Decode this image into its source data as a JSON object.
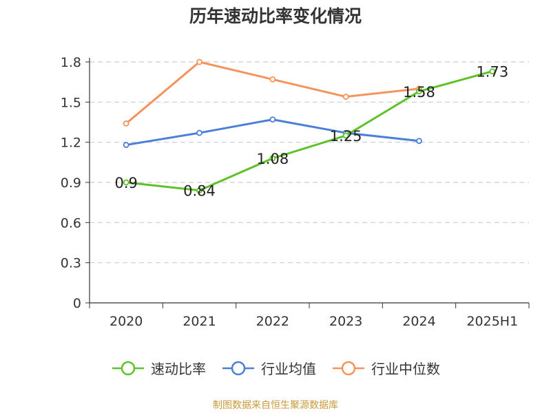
{
  "chart_data": {
    "type": "line",
    "title": "历年速动比率变化情况",
    "categories": [
      "2020",
      "2021",
      "2022",
      "2023",
      "2024",
      "2025H1"
    ],
    "series": [
      {
        "name": "速动比率",
        "color": "#5cc228",
        "values": [
          0.9,
          0.84,
          1.08,
          1.25,
          1.58,
          1.73
        ],
        "labels": [
          "0.9",
          "0.84",
          "1.08",
          "1.25",
          "1.58",
          "1.73"
        ]
      },
      {
        "name": "行业均值",
        "color": "#4a7fd8",
        "values": [
          1.18,
          1.27,
          1.37,
          1.27,
          1.21,
          null
        ]
      },
      {
        "name": "行业中位数",
        "color": "#f5935a",
        "values": [
          1.34,
          1.8,
          1.67,
          1.54,
          1.6,
          null
        ]
      }
    ],
    "yticks": [
      "0",
      "0.3",
      "0.6",
      "0.9",
      "1.2",
      "1.5",
      "1.8"
    ],
    "ylim": [
      0,
      1.8
    ],
    "grid": true,
    "legend_position": "bottom"
  },
  "footer": {
    "source": "制图数据来自恒生聚源数据库"
  }
}
